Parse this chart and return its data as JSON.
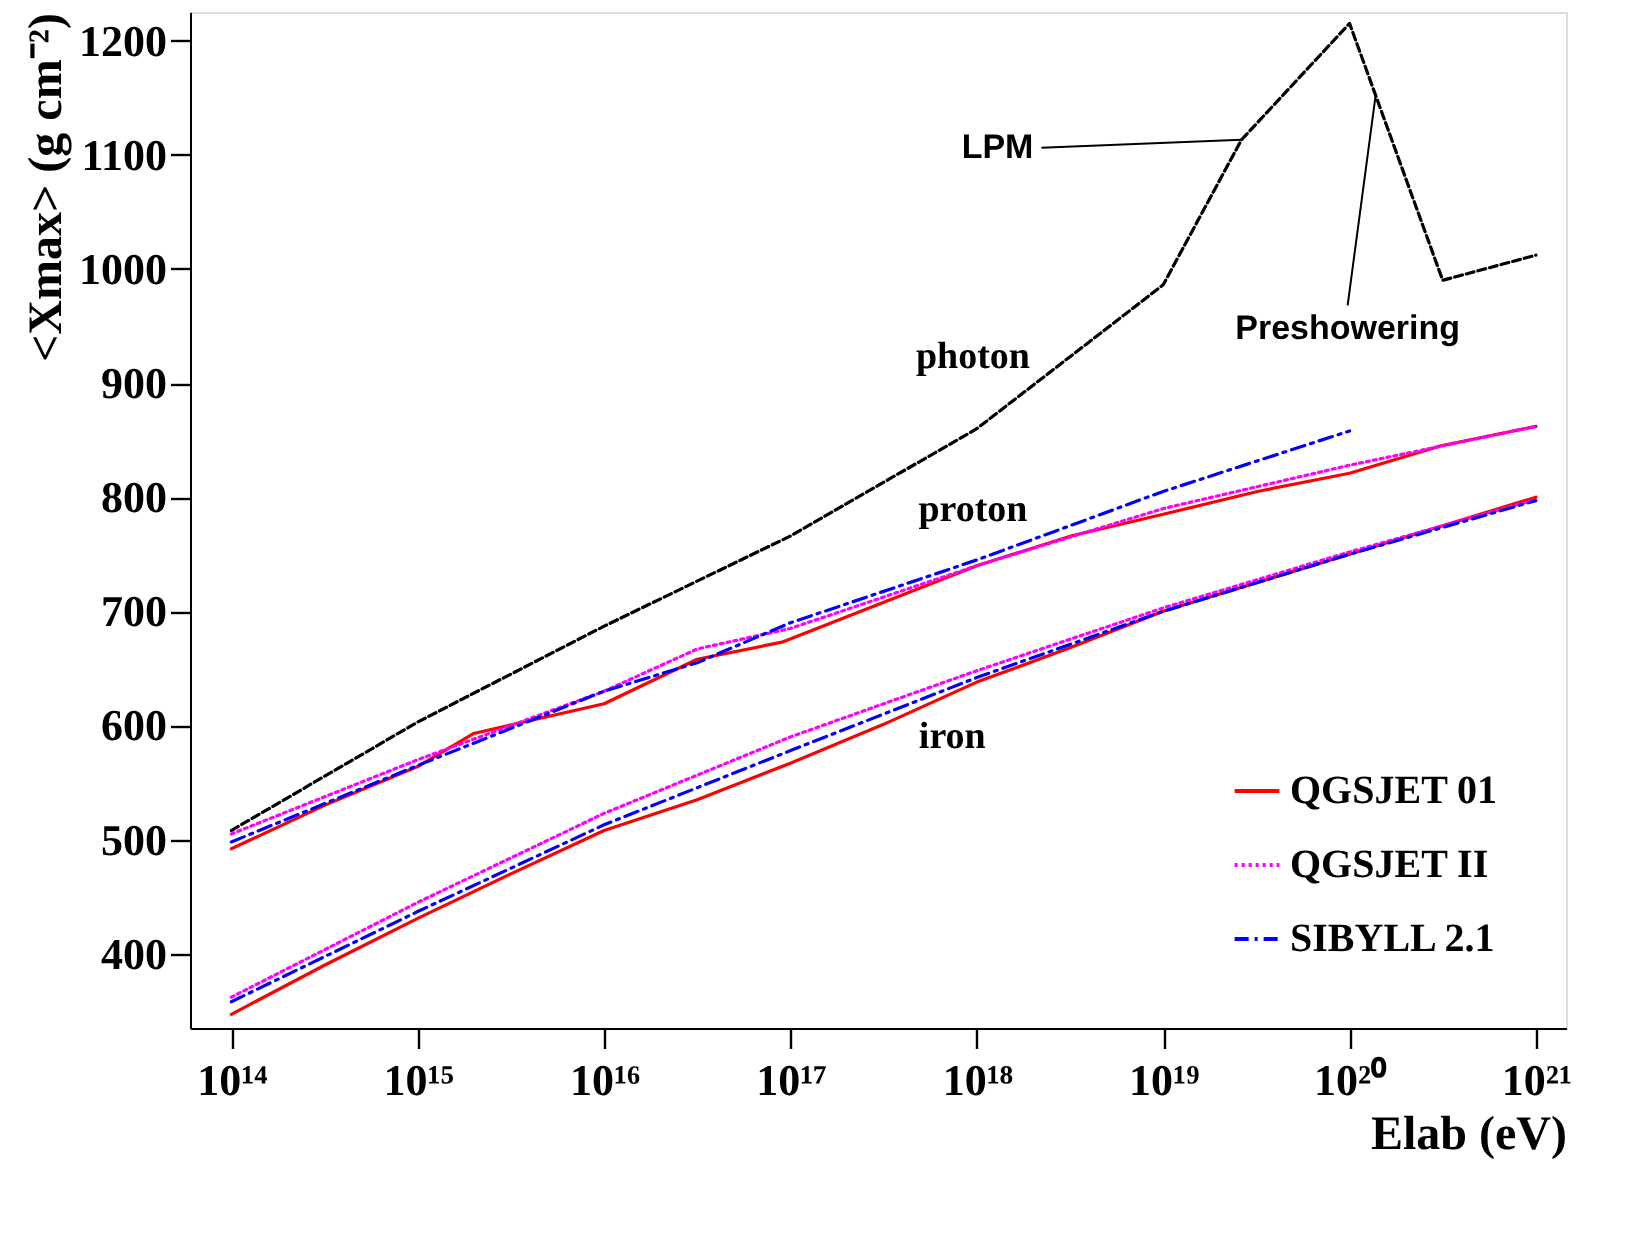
{
  "chart_data": {
    "type": "line",
    "xlabel": "Elab (eV)",
    "ylabel": "<Xmax> (g cm⁻²)",
    "log": "x",
    "xlim": [
      60000000000000.0,
      1.45e+21
    ],
    "ylim": [
      335,
      1225
    ],
    "xticks": [
      {
        "value": 100000000000000.0,
        "label": "10¹⁴"
      },
      {
        "value": 1000000000000000.0,
        "label": "10¹⁵"
      },
      {
        "value": 1e+16,
        "label": "10¹⁶"
      },
      {
        "value": 1e+17,
        "label": "10¹⁷"
      },
      {
        "value": 1e+18,
        "label": "10¹⁸"
      },
      {
        "value": 1e+19,
        "label": "10¹⁹"
      },
      {
        "value": 1e+20,
        "label": "10²⁰"
      },
      {
        "value": 1e+21,
        "label": "10²¹"
      }
    ],
    "yticks": [
      400,
      500,
      600,
      700,
      800,
      900,
      1000,
      1100,
      1200
    ],
    "grid": false,
    "legend": "bottom right",
    "series": [
      {
        "color": "#000000",
        "line_style": "dashed",
        "x": [
          100000000000000.0,
          1000000000000000.0,
          1e+16,
          1e+17,
          1e+18,
          1e+19,
          2.63e+19,
          1e+20,
          3.16e+20,
          1e+21
        ],
        "values": [
          508,
          603,
          687,
          766,
          860,
          986,
          1113,
          1215,
          990,
          1012
        ]
      },
      {
        "name": "QGSJET 01",
        "color": "#ff0000",
        "line_style": "solid",
        "x": [
          100000000000000.0,
          316000000000000.0,
          1000000000000000.0,
          2000000000000000.0,
          1e+16,
          3.16e+16,
          9e+16,
          3.4e+17,
          1e+18,
          3.2e+18,
          1e+19,
          3.2e+19,
          1e+20,
          3.1e+20,
          1e+21
        ],
        "values": [
          492,
          530,
          564,
          593,
          619,
          658,
          673,
          710,
          740,
          766,
          785,
          805,
          821,
          845,
          862
        ]
      },
      {
        "name": "QGSJET II",
        "color": "#ff00ff",
        "line_style": "dotted",
        "x": [
          100000000000000.0,
          1000000000000000.0,
          1e+16,
          3.16e+16,
          1e+17,
          1e+18,
          1e+19,
          1e+20,
          1e+21
        ],
        "values": [
          505,
          570,
          630,
          667,
          685,
          740,
          790,
          828,
          862
        ]
      },
      {
        "name": "SIBYLL 2.1",
        "color": "#0000ff",
        "line_style": "dashdot",
        "x": [
          100000000000000.0,
          1000000000000000.0,
          1e+16,
          3.16e+16,
          1e+17,
          1e+18,
          1e+19,
          1e+20
        ],
        "values": [
          498,
          565,
          630,
          655,
          690,
          745,
          805,
          858
        ]
      },
      {
        "color": "#ff0000",
        "line_style": "solid",
        "x": [
          100000000000000.0,
          316000000000000.0,
          1000000000000000.0,
          3160000000000000.0,
          1e+16,
          3.16e+16,
          1e+17,
          3.16e+17,
          1e+18,
          3.16e+18,
          1e+19,
          1e+20,
          3.16e+20,
          1e+21
        ],
        "values": [
          347,
          390,
          431,
          470,
          508,
          535,
          567,
          601,
          638,
          668,
          700,
          750,
          775,
          800
        ]
      },
      {
        "color": "#ff00ff",
        "line_style": "dotted",
        "x": [
          100000000000000.0,
          1000000000000000.0,
          1e+16,
          1e+17,
          1e+18,
          1e+19,
          1e+20,
          1e+21
        ],
        "values": [
          362,
          445,
          523,
          590,
          648,
          703,
          752,
          798
        ]
      },
      {
        "color": "#0000ff",
        "line_style": "dashdot",
        "x": [
          100000000000000.0,
          1000000000000000.0,
          1e+16,
          1e+17,
          1e+18,
          1e+19,
          1e+20,
          1e+21
        ],
        "values": [
          358,
          437,
          513,
          578,
          642,
          700,
          750,
          797
        ]
      }
    ],
    "annotations": [
      "photon",
      "proton",
      "iron",
      {
        "text": "LPM",
        "x": 2.63e+19,
        "y": 1113
      },
      {
        "text": "Preshowering",
        "x": 1.38e+20,
        "y": 1152
      }
    ]
  }
}
